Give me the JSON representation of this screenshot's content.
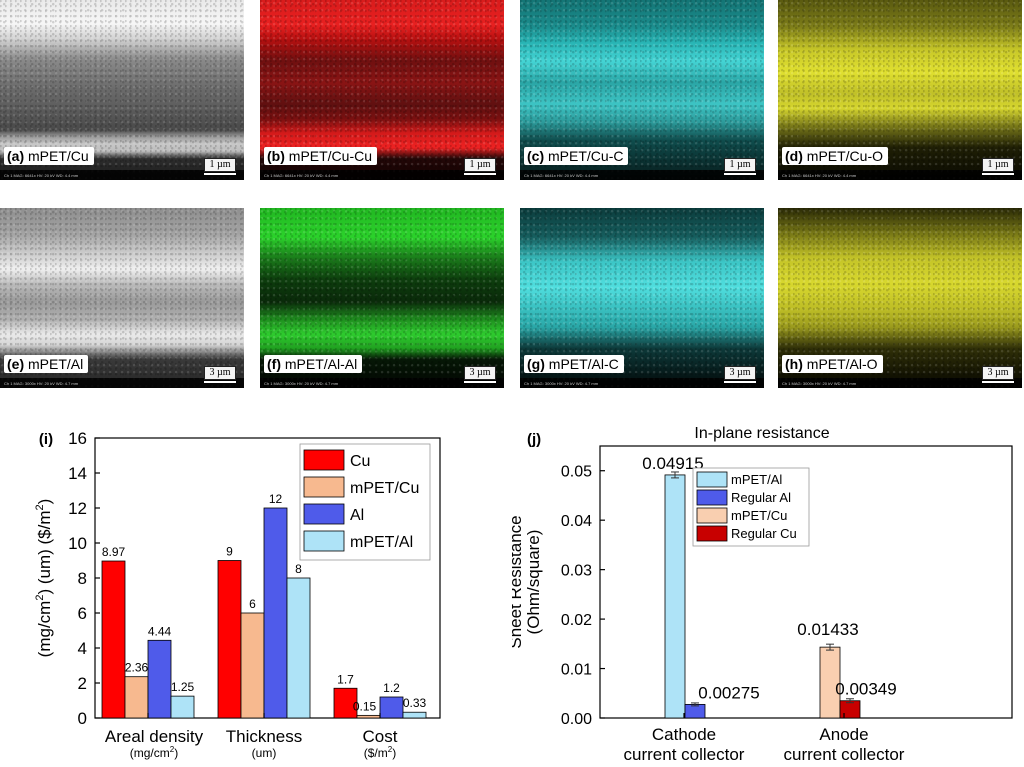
{
  "micrographs": [
    {
      "id": "img-a",
      "panel": "(a)",
      "name": "mPET/Cu",
      "scale": "1 µm",
      "meta": "Ch 1   MAG: 6641x   HV: 20 kV   WD: 4.4 mm"
    },
    {
      "id": "img-b",
      "panel": "(b)",
      "name": "mPET/Cu-Cu",
      "scale": "1 µm",
      "meta": "Ch 1   MAG: 6641x   HV: 20 kV   WD: 4.4 mm"
    },
    {
      "id": "img-c",
      "panel": "(c)",
      "name": "mPET/Cu-C",
      "scale": "1 µm",
      "meta": "Ch 1   MAG: 6641x   HV: 20 kV   WD: 4.4 mm"
    },
    {
      "id": "img-d",
      "panel": "(d)",
      "name": "mPET/Cu-O",
      "scale": "1 µm",
      "meta": "Ch 1   MAG: 6641x   HV: 20 kV   WD: 4.4 mm"
    },
    {
      "id": "img-e",
      "panel": "(e)",
      "name": "mPET/Al",
      "scale": "3 µm",
      "meta": "Ch 1   MAG: 3000x   HV: 20 kV   WD: 4.7 mm"
    },
    {
      "id": "img-f",
      "panel": "(f)",
      "name": "mPET/Al-Al",
      "scale": "3 µm",
      "meta": "Ch 1   MAG: 3000x   HV: 20 kV   WD: 4.7 mm"
    },
    {
      "id": "img-g",
      "panel": "(g)",
      "name": "mPET/Al-C",
      "scale": "3 µm",
      "meta": "Ch 1   MAG: 3000x   HV: 20 kV   WD: 4.7 mm"
    },
    {
      "id": "img-h",
      "panel": "(h)",
      "name": "mPET/Al-O",
      "scale": "3 µm",
      "meta": "Ch 1   MAG: 3000x   HV: 20 kV   WD: 4.7 mm"
    }
  ],
  "chart_data": [
    {
      "panel": "(i)",
      "type": "bar",
      "title": "",
      "ylabel_parts": [
        "(mg/cm",
        "2",
        ") (um) ($/m",
        "2",
        ")"
      ],
      "ylim": [
        0,
        16
      ],
      "yticks": [
        0,
        2,
        4,
        6,
        8,
        10,
        12,
        14,
        16
      ],
      "categories": [
        "Areal density",
        "Thickness",
        "Cost"
      ],
      "category_units": [
        [
          "(mg/cm",
          "2",
          ")"
        ],
        [
          "(um)",
          ""
        ],
        [
          "($/m",
          "2",
          ")"
        ]
      ],
      "series": [
        {
          "name": "Cu",
          "color": "#ff0000",
          "values": [
            8.97,
            9,
            1.7
          ],
          "labels": [
            "8.97",
            "9",
            "1.7"
          ]
        },
        {
          "name": "mPET/Cu",
          "color": "#f7b98f",
          "values": [
            2.36,
            6,
            0.15
          ],
          "labels": [
            "2.36",
            "6",
            "0.15"
          ]
        },
        {
          "name": "Al",
          "color": "#4f5bea",
          "values": [
            4.44,
            12,
            1.2
          ],
          "labels": [
            "4.44",
            "12",
            "1.2"
          ]
        },
        {
          "name": "mPET/Al",
          "color": "#aee3f7",
          "values": [
            1.25,
            8,
            0.33
          ],
          "labels": [
            "1.25",
            "8",
            "0.33"
          ]
        }
      ],
      "legend_position": "top-right"
    },
    {
      "panel": "(j)",
      "type": "bar",
      "title": "In-plane resistance",
      "ylabel": "Sheet Resistance",
      "ylabel2": "(Ohm/square)",
      "ylim": [
        0,
        0.055
      ],
      "yticks": [
        0.0,
        0.01,
        0.02,
        0.03,
        0.04,
        0.05
      ],
      "ytick_labels": [
        "0.00",
        "0.01",
        "0.02",
        "0.03",
        "0.04",
        "0.05"
      ],
      "categories": [
        [
          "Cathode",
          "current collector"
        ],
        [
          "Anode",
          "current collector"
        ]
      ],
      "series": [
        {
          "name": "mPET/Al",
          "color": "#aee3f7",
          "values": [
            0.04915,
            null
          ],
          "labels": [
            "0.04915",
            ""
          ],
          "err": [
            0.0006,
            null
          ]
        },
        {
          "name": "Regular Al",
          "color": "#4f5bea",
          "values": [
            0.00275,
            null
          ],
          "labels": [
            "0.00275",
            ""
          ],
          "err": [
            0.0003,
            null
          ]
        },
        {
          "name": "mPET/Cu",
          "color": "#f9cfb0",
          "values": [
            null,
            0.01433
          ],
          "labels": [
            "",
            "0.01433"
          ],
          "err": [
            null,
            0.0006
          ]
        },
        {
          "name": "Regular Cu",
          "color": "#c80000",
          "values": [
            null,
            0.00349
          ],
          "labels": [
            "",
            "0.00349"
          ],
          "err": [
            null,
            0.0004
          ]
        }
      ],
      "legend_position": "top-right"
    }
  ]
}
